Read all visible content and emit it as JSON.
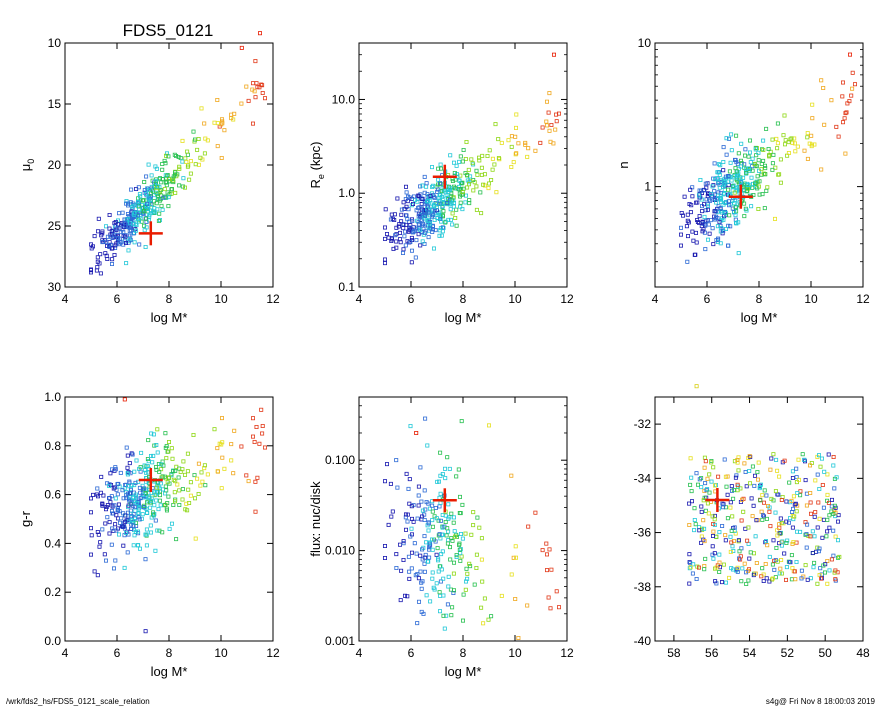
{
  "figure_title": "FDS5_0121",
  "footer_left": "/wrk/fds2_hs/FDS5_0121_scale_relation",
  "footer_right": "s4g@  Fri Nov  8 18:00:03 2019",
  "colors": {
    "palette": [
      "#1a1ab0",
      "#2e6bd6",
      "#22c8d8",
      "#28c050",
      "#90d818",
      "#e6e020",
      "#f0a820",
      "#e23a1a"
    ],
    "highlight": "#e81c00",
    "axes": "#000000"
  },
  "chart_data": [
    {
      "id": "mu0",
      "type": "scatter",
      "title": "FDS5_0121",
      "xlabel": "log M*",
      "ylabel": "μ",
      "ylabel_sub": "0",
      "xscale": "linear",
      "yscale": "linear",
      "xlim": [
        4,
        12
      ],
      "ylim": [
        30,
        10
      ],
      "xticks": [
        4,
        6,
        8,
        10,
        12
      ],
      "yticks": [
        10,
        15,
        20,
        25,
        30
      ],
      "xtick_labels": [
        "4",
        "6",
        "8",
        "10",
        "12"
      ],
      "ytick_labels": [
        "10",
        "15",
        "20",
        "25",
        "30"
      ],
      "target": {
        "x": 7.3,
        "y": 25.6
      },
      "trend": {
        "kind": "linear",
        "x0": 6.5,
        "y0": 24.6,
        "slope": -2.2,
        "scatter": 1.0
      },
      "extremes": [
        {
          "x": 11.5,
          "y": 9.2
        },
        {
          "x": 10.8,
          "y": 10.4
        }
      ],
      "n_points": 420
    },
    {
      "id": "re",
      "type": "scatter",
      "xlabel": "log M*",
      "ylabel": "R",
      "ylabel_sub": "e",
      "ylabel_suffix": " (kpc)",
      "xscale": "linear",
      "yscale": "log",
      "xlim": [
        4,
        12
      ],
      "ylim": [
        0.1,
        40
      ],
      "xticks": [
        4,
        6,
        8,
        10,
        12
      ],
      "yticks": [
        0.1,
        1.0,
        10.0
      ],
      "xtick_labels": [
        "4",
        "6",
        "8",
        "10",
        "12"
      ],
      "ytick_labels": [
        "0.1",
        "1.0",
        "10.0"
      ],
      "target": {
        "x": 7.3,
        "y": 1.5
      },
      "trend": {
        "kind": "log",
        "x0": 6.5,
        "y0": 0.62,
        "slope": 0.2,
        "scatter": 0.17
      },
      "extremes": [
        {
          "x": 11.5,
          "y": 30
        }
      ],
      "n_points": 420
    },
    {
      "id": "n",
      "type": "scatter",
      "xlabel": "log M*",
      "ylabel": "n",
      "xscale": "linear",
      "yscale": "log",
      "xlim": [
        4,
        12
      ],
      "ylim": [
        0.2,
        10
      ],
      "xticks": [
        4,
        6,
        8,
        10,
        12
      ],
      "yticks": [
        1,
        10
      ],
      "xtick_labels": [
        "4",
        "6",
        "8",
        "10",
        "12"
      ],
      "ytick_labels": [
        "1",
        "10"
      ],
      "target": {
        "x": 7.3,
        "y": 0.85
      },
      "trend": {
        "kind": "log",
        "x0": 6.5,
        "y0": 0.8,
        "slope": 0.14,
        "scatter": 0.14
      },
      "extremes": [
        {
          "x": 11.5,
          "y": 8.3
        }
      ],
      "n_points": 420
    },
    {
      "id": "gr",
      "type": "scatter",
      "xlabel": "log M*",
      "ylabel": "g-r",
      "xscale": "linear",
      "yscale": "linear",
      "xlim": [
        4,
        12
      ],
      "ylim": [
        0.0,
        1.0
      ],
      "xticks": [
        4,
        6,
        8,
        10,
        12
      ],
      "yticks": [
        0.0,
        0.2,
        0.4,
        0.6,
        0.8,
        1.0
      ],
      "xtick_labels": [
        "4",
        "6",
        "8",
        "10",
        "12"
      ],
      "ytick_labels": [
        "0.0",
        "0.2",
        "0.4",
        "0.6",
        "0.8",
        "1.0"
      ],
      "target": {
        "x": 7.3,
        "y": 0.66
      },
      "trend": {
        "kind": "linear",
        "x0": 6.5,
        "y0": 0.56,
        "slope": 0.05,
        "scatter": 0.1
      },
      "extremes": [
        {
          "x": 7.1,
          "y": 0.04
        },
        {
          "x": 6.3,
          "y": 0.99
        }
      ],
      "n_points": 420
    },
    {
      "id": "flux",
      "type": "scatter",
      "xlabel": "log M*",
      "ylabel": "flux: nuc/disk",
      "xscale": "linear",
      "yscale": "log",
      "xlim": [
        4,
        12
      ],
      "ylim": [
        0.001,
        0.5
      ],
      "xticks": [
        4,
        6,
        8,
        10,
        12
      ],
      "yticks": [
        0.001,
        0.01,
        0.1
      ],
      "xtick_labels": [
        "4",
        "6",
        "8",
        "10",
        "12"
      ],
      "ytick_labels": [
        "0.001",
        "0.010",
        "0.100"
      ],
      "target": {
        "x": 7.3,
        "y": 0.036
      },
      "trend": {
        "kind": "log",
        "x0": 6.8,
        "y0": 0.012,
        "slope": -0.05,
        "scatter": 0.45
      },
      "extremes": [
        {
          "x": 6.2,
          "y": 0.2
        }
      ],
      "n_points": 260
    },
    {
      "id": "pos",
      "type": "scatter",
      "xlabel": "",
      "ylabel": "",
      "xscale": "linear",
      "yscale": "linear",
      "xlim": [
        59,
        48
      ],
      "ylim": [
        -40,
        -31
      ],
      "xticks": [
        58,
        56,
        54,
        52,
        50,
        48
      ],
      "yticks": [
        -40,
        -38,
        -36,
        -34,
        -32
      ],
      "xtick_labels": [
        "58",
        "56",
        "54",
        "52",
        "50",
        "48"
      ],
      "ytick_labels": [
        "-40",
        "-38",
        "-36",
        "-34",
        "-32"
      ],
      "target": {
        "x": 55.7,
        "y": -34.8
      },
      "trend": {
        "kind": "box",
        "x_range": [
          49.2,
          57.2
        ],
        "y_range": [
          -37.9,
          -33.1
        ]
      },
      "extremes": [
        {
          "x": 56.8,
          "y": -30.6
        }
      ],
      "n_points": 420
    }
  ]
}
